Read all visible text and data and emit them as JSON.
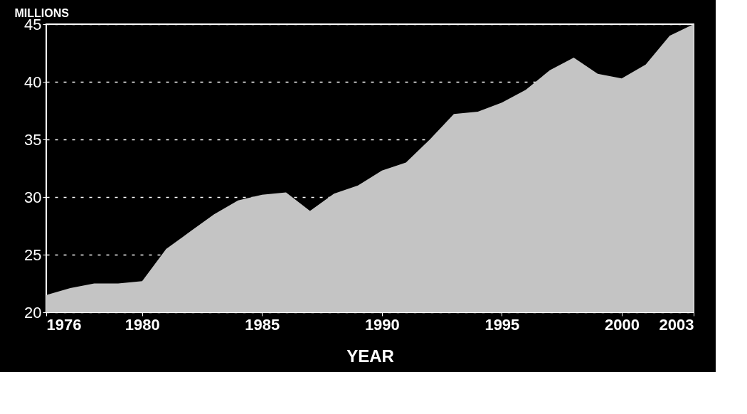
{
  "chart_data": {
    "type": "area",
    "xlabel": "YEAR",
    "ylabel": "MILLIONS",
    "x": [
      1976,
      1977,
      1978,
      1979,
      1980,
      1981,
      1982,
      1983,
      1984,
      1985,
      1986,
      1987,
      1988,
      1989,
      1990,
      1991,
      1992,
      1993,
      1994,
      1995,
      1996,
      1997,
      1998,
      1999,
      2000,
      2001,
      2002,
      2003
    ],
    "series": [
      {
        "color": "#c4c4c4",
        "values": [
          21.5,
          22.1,
          22.5,
          22.5,
          22.7,
          25.5,
          27.0,
          28.5,
          29.7,
          30.2,
          30.4,
          28.8,
          30.3,
          31.0,
          32.3,
          33.0,
          35.0,
          37.2,
          37.4,
          38.2,
          39.3,
          41.0,
          42.1,
          40.7,
          40.3,
          41.5,
          44.0,
          45.0
        ]
      }
    ],
    "xlim": [
      1976,
      2003
    ],
    "xticks": [
      1976,
      1980,
      1985,
      1990,
      1995,
      2000,
      2003
    ],
    "ylim": [
      20,
      45
    ],
    "yticks": [
      20,
      25,
      30,
      35,
      40,
      45
    ],
    "grid": "y",
    "legend": false
  }
}
